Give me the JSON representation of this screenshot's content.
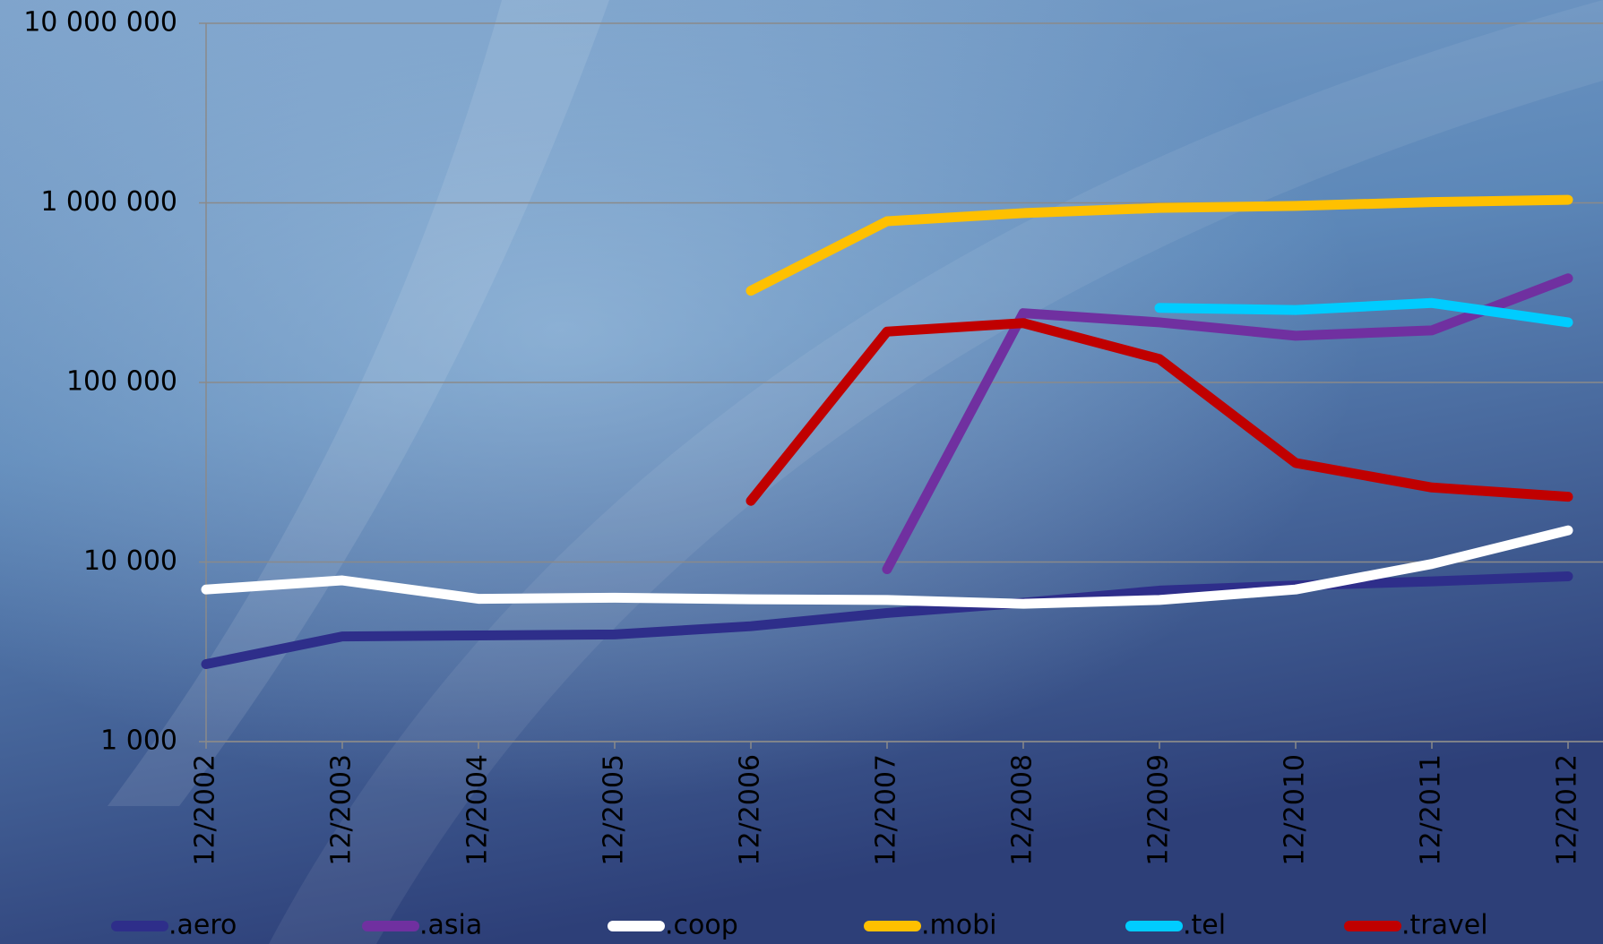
{
  "chart_data": {
    "type": "line",
    "log_scale": true,
    "grid": true,
    "legend": "bottom",
    "categories": [
      "12/2002",
      "12/2003",
      "12/2004",
      "12/2005",
      "12/2006",
      "12/2007",
      "12/2008",
      "12/2009",
      "12/2010",
      "12/2011",
      "12/2012"
    ],
    "ylim": [
      1000,
      10000000
    ],
    "yticks": [
      {
        "value": 1000,
        "label": "1 000"
      },
      {
        "value": 10000,
        "label": "10 000"
      },
      {
        "value": 100000,
        "label": "100 000"
      },
      {
        "value": 1000000,
        "label": "1 000 000"
      },
      {
        "value": 10000000,
        "label": "10 000 000"
      }
    ],
    "series": [
      {
        "name": ".aero",
        "color": "#2e2e8a",
        "values": [
          2700,
          3850,
          3900,
          3950,
          4390,
          5200,
          5930,
          6930,
          7400,
          7800,
          8320
        ]
      },
      {
        "name": ".asia",
        "color": "#7030a0",
        "values": [
          null,
          null,
          null,
          null,
          null,
          9120,
          243000,
          216000,
          182000,
          195000,
          380000
        ]
      },
      {
        "name": ".coop",
        "color": "#ffffff",
        "values": [
          7030,
          7900,
          6240,
          6330,
          6200,
          6150,
          5850,
          6150,
          7030,
          9750,
          15000
        ]
      },
      {
        "name": ".mobi",
        "color": "#ffc000",
        "values": [
          null,
          null,
          null,
          null,
          324000,
          790000,
          877000,
          937000,
          962000,
          1010000,
          1040000
        ]
      },
      {
        "name": ".tel",
        "color": "#00ccff",
        "values": [
          null,
          null,
          null,
          null,
          null,
          null,
          null,
          260000,
          253000,
          277000,
          216000
        ]
      },
      {
        "name": ".travel",
        "color": "#c00000",
        "values": [
          null,
          null,
          null,
          null,
          21900,
          192000,
          214000,
          135000,
          35600,
          26000,
          23100
        ]
      }
    ]
  }
}
